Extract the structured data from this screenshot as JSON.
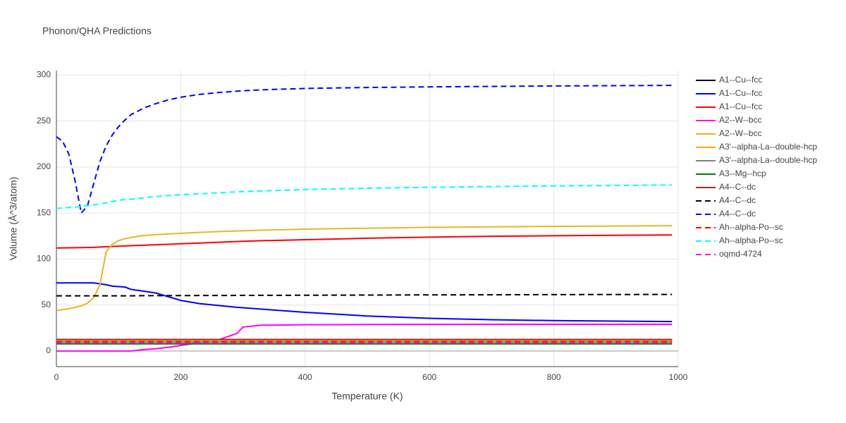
{
  "chart_data": {
    "type": "line",
    "title": "Phonon/QHA Predictions",
    "x_label": "Temperature (K)",
    "y_label": "Volume (Å^3/atom)",
    "x": [
      0,
      10,
      20,
      30,
      40,
      50,
      60,
      70,
      80,
      90,
      100,
      110,
      120,
      140,
      160,
      180,
      200,
      230,
      260,
      290,
      300,
      330,
      400,
      500,
      600,
      700,
      800,
      990
    ],
    "xlim": [
      0,
      1000
    ],
    "xticks": [
      0,
      200,
      400,
      600,
      800,
      1000
    ],
    "ylim": [
      -17,
      305
    ],
    "yticks": [
      0,
      50,
      100,
      150,
      200,
      250,
      300
    ],
    "grid": true,
    "legend": "right",
    "series": [
      {
        "name": "A1--Cu--fcc",
        "color": "#000000",
        "line_style": "solid",
        "values": [
          11.8,
          11.8,
          11.8,
          11.8,
          11.8,
          11.8,
          11.8,
          11.8,
          11.8,
          11.8,
          11.8,
          11.8,
          11.8,
          11.8,
          11.8,
          11.8,
          11.8,
          11.8,
          11.8,
          11.8,
          11.8,
          11.8,
          11.8,
          11.8,
          11.8,
          11.8,
          11.8,
          11.8
        ]
      },
      {
        "name": "A1--Cu--fcc",
        "color": "#0000ff",
        "line_style": "solid",
        "values": [
          74,
          74,
          74,
          74,
          74,
          74,
          74,
          73,
          72,
          70.5,
          70,
          69.5,
          67,
          65,
          63,
          59,
          55,
          51.5,
          49.5,
          47.5,
          47,
          45.5,
          42,
          38,
          35.5,
          34,
          33,
          32
        ]
      },
      {
        "name": "A1--Cu--fcc",
        "color": "#ff0000",
        "line_style": "solid",
        "values": [
          112,
          112.1,
          112.2,
          112.3,
          112.4,
          112.5,
          112.7,
          113,
          113.3,
          113.6,
          113.9,
          114.2,
          114.5,
          115,
          115.5,
          116,
          116.6,
          117.4,
          118.2,
          119,
          119.3,
          119.9,
          121,
          122.6,
          123.8,
          124.7,
          125.3,
          126.2
        ]
      },
      {
        "name": "A2--W--bcc",
        "color": "#ff00ff",
        "line_style": "solid",
        "values": [
          0,
          0,
          0,
          0,
          0,
          0,
          0,
          0,
          0,
          0,
          0,
          0,
          0,
          1.5,
          2.5,
          4,
          6,
          9,
          12,
          19,
          26,
          28,
          28.5,
          28.8,
          28.9,
          29,
          29,
          29
        ]
      },
      {
        "name": "A2--W--bcc",
        "color": "#e6b820",
        "line_style": "solid",
        "values": [
          44,
          45,
          46,
          47.5,
          49,
          52,
          58,
          72,
          108,
          116,
          120,
          122,
          123.5,
          125.5,
          126.5,
          127.3,
          128,
          129,
          129.8,
          130.5,
          130.7,
          131.3,
          132.5,
          133.5,
          134.5,
          135,
          135.5,
          136.2
        ]
      },
      {
        "name": "A3'--alpha-La--double-hcp",
        "color": "#ffa500",
        "line_style": "solid",
        "values": [
          11,
          11,
          11,
          11,
          11,
          11,
          11,
          11,
          11,
          11,
          11,
          11,
          11,
          11,
          11,
          11,
          11,
          11,
          11,
          11,
          11,
          11,
          11,
          11,
          11,
          11,
          11,
          11
        ]
      },
      {
        "name": "A3'--alpha-La--double-hcp",
        "color": "#808080",
        "line_style": "solid",
        "values": [
          9.5,
          9.5,
          9.5,
          9.5,
          9.5,
          9.5,
          9.5,
          9.5,
          9.5,
          9.5,
          9.5,
          9.5,
          9.5,
          9.5,
          9.5,
          9.5,
          9.5,
          9.5,
          9.5,
          9.5,
          9.5,
          9.5,
          9.5,
          9.5,
          9.5,
          9.5,
          9.5,
          9.5
        ]
      },
      {
        "name": "A3--Mg--hcp",
        "color": "#008000",
        "line_style": "solid",
        "values": [
          7.7,
          7.7,
          7.7,
          7.7,
          7.7,
          7.7,
          7.7,
          7.7,
          7.7,
          7.7,
          7.7,
          7.7,
          7.7,
          7.7,
          7.7,
          7.7,
          7.7,
          7.7,
          7.7,
          7.7,
          7.7,
          7.7,
          7.7,
          7.7,
          7.7,
          7.7,
          7.7,
          7.7
        ]
      },
      {
        "name": "A4--C--dc",
        "color": "#a52a2a",
        "line_style": "solid",
        "values": [
          12.5,
          12.5,
          12.5,
          12.5,
          12.5,
          12.5,
          12.5,
          12.5,
          12.5,
          12.5,
          12.5,
          12.5,
          12.5,
          12.5,
          12.5,
          12.5,
          12.5,
          12.5,
          12.5,
          12.5,
          12.5,
          12.5,
          12.5,
          12.5,
          12.5,
          12.5,
          12.5,
          12.5
        ]
      },
      {
        "name": "A4--C--dc",
        "color": "#000000",
        "line_style": "dash",
        "values": [
          60,
          60,
          60,
          60,
          60,
          60,
          60,
          60,
          60,
          60,
          60,
          60,
          60,
          60.1,
          60.1,
          60.2,
          60.2,
          60.3,
          60.3,
          60.4,
          60.4,
          60.5,
          60.6,
          60.8,
          61,
          61.1,
          61.3,
          61.5
        ]
      },
      {
        "name": "A4--C--dc",
        "color": "#0000ff",
        "line_style": "dash",
        "values": [
          233,
          228,
          214,
          185,
          150,
          158,
          182,
          206,
          223,
          235,
          244,
          251,
          257,
          264,
          269,
          273,
          276,
          279,
          281,
          282.5,
          283,
          284,
          285.5,
          286.5,
          287.2,
          287.7,
          288.2,
          288.8
        ]
      },
      {
        "name": "Ah--alpha-Po--sc",
        "color": "#ff0000",
        "line_style": "dash",
        "values": [
          10,
          10,
          10,
          10,
          10,
          10,
          10,
          10,
          10,
          10,
          10,
          10,
          10,
          10,
          10,
          10,
          10,
          10,
          10,
          10,
          10,
          10,
          10,
          10,
          10,
          10,
          10,
          10
        ]
      },
      {
        "name": "Ah--alpha-Po--sc",
        "color": "#00ffff",
        "line_style": "dash",
        "values": [
          155,
          155.5,
          156,
          156.5,
          157,
          158,
          159,
          160,
          161,
          162.5,
          164,
          164.5,
          165,
          166.5,
          168,
          169,
          170,
          171,
          172,
          173,
          173.3,
          174,
          175.5,
          177,
          178,
          178.8,
          179.5,
          180.5
        ]
      },
      {
        "name": "oqmd-4724",
        "color": "#ff00ff",
        "line_style": "dash",
        "values": [
          9,
          9,
          9,
          9,
          9,
          9,
          9,
          9,
          9,
          9,
          9,
          9,
          9,
          9,
          9,
          9,
          9,
          9,
          9,
          9,
          9,
          9,
          9,
          9,
          9,
          9,
          9,
          9
        ]
      }
    ]
  }
}
